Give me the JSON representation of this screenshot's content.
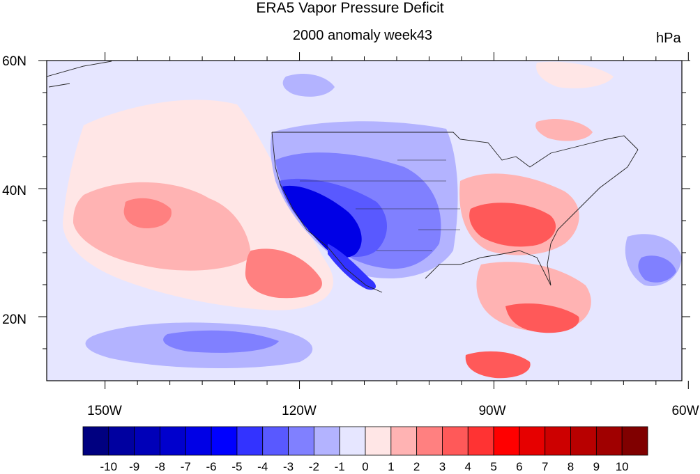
{
  "header": {
    "title": "ERA5 Vapor Pressure Deficit",
    "subtitle": "2000 anomaly week43",
    "units": "hPa"
  },
  "axes": {
    "x_ticks": [
      "150W",
      "120W",
      "90W",
      "60W"
    ],
    "y_ticks": [
      "60N",
      "40N",
      "20N"
    ],
    "lon_range": [
      -159,
      -61
    ],
    "lat_range": [
      10,
      60
    ]
  },
  "colorbar": {
    "labels": [
      "-10",
      "-9",
      "-8",
      "-7",
      "-6",
      "-5",
      "-4",
      "-3",
      "-2",
      "-1",
      "0",
      "1",
      "2",
      "3",
      "4",
      "5",
      "6",
      "7",
      "8",
      "9",
      "10"
    ],
    "colors": [
      "#000080",
      "#0000a0",
      "#0000b8",
      "#0000cd",
      "#0000e6",
      "#0000ff",
      "#3333ff",
      "#5959ff",
      "#8080ff",
      "#b3b3ff",
      "#e6e6ff",
      "#ffe6e6",
      "#ffb3b3",
      "#ff8080",
      "#ff5959",
      "#ff3333",
      "#ff0000",
      "#e60000",
      "#cd0000",
      "#b80000",
      "#a00000",
      "#800000"
    ]
  }
}
